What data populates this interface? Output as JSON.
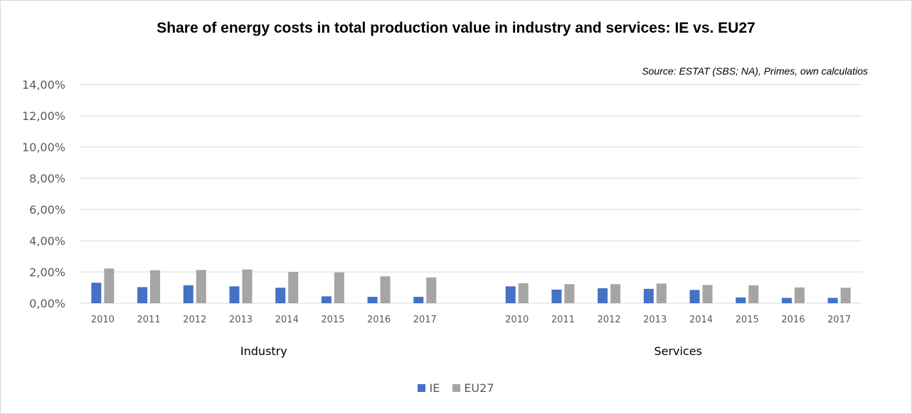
{
  "chart_data": {
    "type": "bar",
    "title": "Share of energy costs in total production value in industry and services: IE vs. EU27",
    "annotation": "Source: ESTAT (SBS; NA), Primes, own calculatios",
    "xlabel": "",
    "ylabel": "",
    "ylim": [
      0,
      14
    ],
    "yticks": [
      "0,00%",
      "2,00%",
      "4,00%",
      "6,00%",
      "8,00%",
      "10,00%",
      "12,00%",
      "14,00%"
    ],
    "ytick_values": [
      0,
      2,
      4,
      6,
      8,
      10,
      12,
      14
    ],
    "grid": true,
    "legend_position": "bottom",
    "groups": [
      {
        "name": "Industry",
        "categories": [
          "2010",
          "2011",
          "2012",
          "2013",
          "2014",
          "2015",
          "2016",
          "2017"
        ],
        "series": [
          {
            "name": "IE",
            "values": [
              1.31,
              1.03,
              1.15,
              1.08,
              0.99,
              0.44,
              0.41,
              0.41
            ]
          },
          {
            "name": "EU27",
            "values": [
              2.22,
              2.11,
              2.13,
              2.16,
              2.0,
              1.97,
              1.72,
              1.65
            ]
          }
        ]
      },
      {
        "name": "Services",
        "categories": [
          "2010",
          "2011",
          "2012",
          "2013",
          "2014",
          "2015",
          "2016",
          "2017"
        ],
        "series": [
          {
            "name": "IE",
            "values": [
              1.08,
              0.87,
              0.96,
              0.92,
              0.85,
              0.37,
              0.34,
              0.34
            ]
          },
          {
            "name": "EU27",
            "values": [
              1.28,
              1.22,
              1.22,
              1.26,
              1.17,
              1.15,
              1.01,
              0.99
            ]
          }
        ]
      }
    ],
    "legend": [
      {
        "name": "IE",
        "color": "#4472c4"
      },
      {
        "name": "EU27",
        "color": "#a5a5a5"
      }
    ]
  }
}
